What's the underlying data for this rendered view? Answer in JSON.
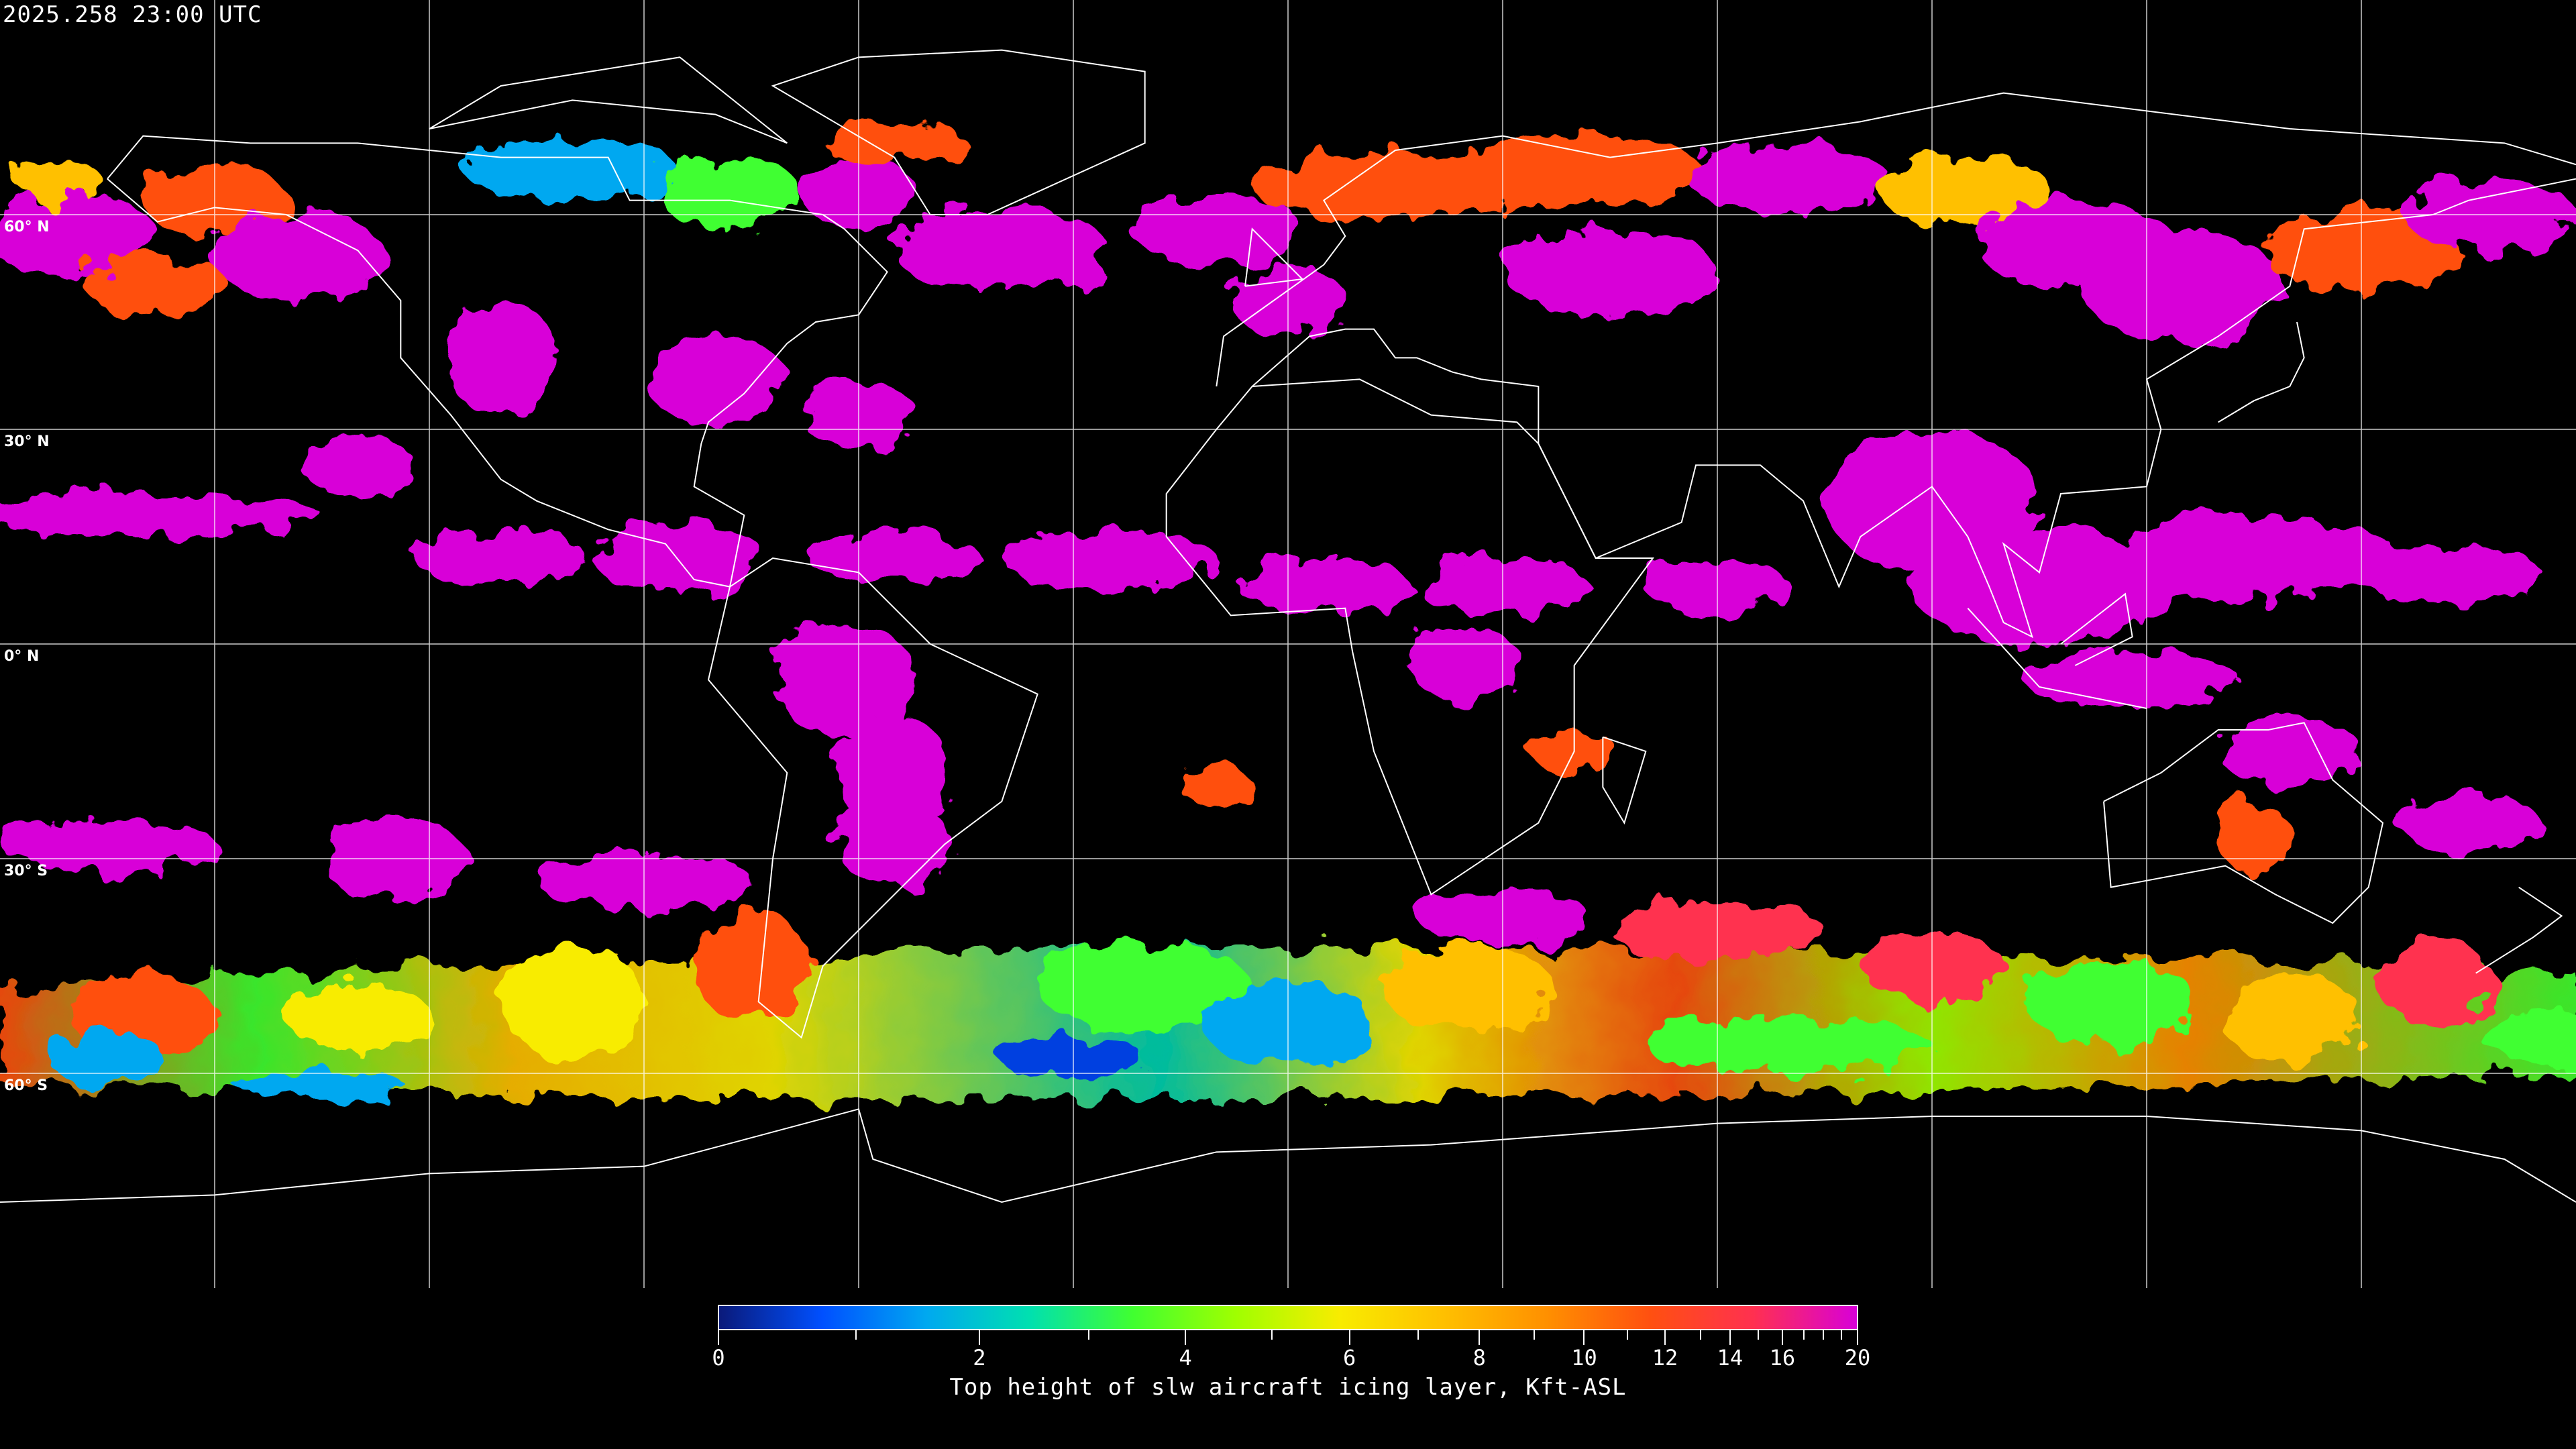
{
  "timestamp": "2025.258 23:00 UTC",
  "map": {
    "projection": "equirectangular",
    "lon_range": [
      -180,
      180
    ],
    "lat_range": [
      -90,
      90
    ],
    "gridline_spacing_deg": 30,
    "lat_labels": [
      "60° N",
      "30° N",
      "0° N",
      "30° S",
      "60° S"
    ]
  },
  "colorbar": {
    "title": "Top height of slw aircraft icing layer, Kft-ASL",
    "range": [
      0,
      20
    ],
    "tick_labels": [
      "0",
      "2",
      "4",
      "6",
      "8",
      "10",
      "12",
      "14",
      "16",
      "20"
    ],
    "colors": [
      "#0a1a7a",
      "#0050ff",
      "#00a8f0",
      "#00e0b0",
      "#40ff30",
      "#a0ff00",
      "#f8ec00",
      "#ffc000",
      "#ff9000",
      "#ff5010",
      "#ff3050",
      "#d800d8"
    ]
  }
}
